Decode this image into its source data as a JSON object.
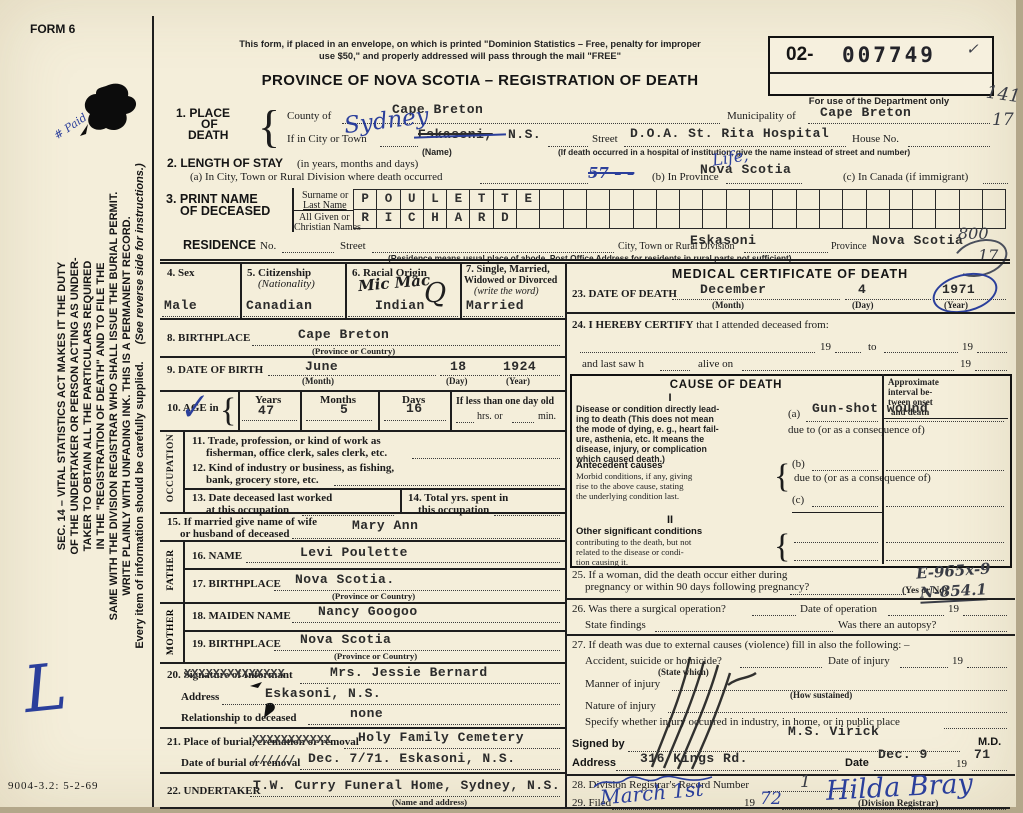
{
  "accent_ink": "#2b3f9b",
  "paper_color": "#f4eeda",
  "hdr": {
    "form6": "FORM 6",
    "n1": "This form, if placed in an envelope, on which is printed \"Dominion Statistics – Free, penalty for improper",
    "n2": "use $50,\" and properly addressed will pass through the mail \"FREE\"",
    "title": "PROVINCE OF NOVA SCOTIA – REGISTRATION OF DEATH",
    "prefix": "02-",
    "regno": "007749",
    "check": "✓",
    "dept": "For use of the Department only",
    "m141": "141",
    "m17": "17",
    "paid": "# Paid",
    "scrL": "L",
    "code": "9004-3.2: 5-2-69"
  },
  "side": {
    "l1": "SEC. 14 – VITAL STATISTICS ACT MAKES IT THE DUTY",
    "l2": "OF THE UNDERTAKER OR PERSON ACTING AS UNDER-",
    "l3": "TAKER TO OBTAIN ALL THE PARTICULARS REQUIRED",
    "l4": "IN THE \"REGISTRATION OF DEATH\" AND TO FILE THE",
    "l5": "SAME WITH THE DIVISION REGISTRAR WHO SHALL ISSUE THE BURIAL PERMIT.",
    "l6": "WRITE PLAINLY WITH UNFADING INK. THIS IS A PERMANENT RECORD.",
    "supplied": "Every item of information should be carefully supplied.",
    "reverse": "(See reverse side for instructions.)"
  },
  "s1": {
    "h1": "1. PLACE",
    "h2": "OF",
    "h3": "DEATH",
    "brace": "{",
    "county": "County of",
    "countyV": "Cape Breton",
    "mun": "Municipality of",
    "munV": "Cape Breton",
    "city": "If in City or Town",
    "cityStruck": "Eskasoni,",
    "ns": "N.S.",
    "sydney": "Sydney",
    "name": "(Name)",
    "street": "Street",
    "streetV": "D.O.A. St. Rita Hospital",
    "house": "House No.",
    "hosp": "(If death occurred in a hospital of institution, give the name instead of street and number)"
  },
  "s2": {
    "h": "2. LENGTH OF STAY",
    "h2": "(in years, months and days)",
    "a": "(a) In City, Town or Rural Division where death occurred",
    "aV": "57 – –",
    "b": "(b) In Province",
    "bV": "Nova Scotia",
    "life": "Life,",
    "c": "(c) In Canada (if immigrant)"
  },
  "s3": {
    "h1": "3. PRINT NAME",
    "h2": "OF DECEASED",
    "sur1": "Surname or",
    "sur2": "Last Name",
    "giv1": "All Given or",
    "giv2": "Christian Names",
    "surname": "POULETTE",
    "given": "RICHARD"
  },
  "res": {
    "h": "RESIDENCE",
    "no": "No.",
    "street": "Street",
    "ctrd": "City, Town or Rural Division",
    "ctrdV": "Eskasoni",
    "prov": "Province",
    "provV": "Nova Scotia",
    "m800": "800",
    "m17": "17",
    "note": "(Residence means usual place of abode. Post Office Address for residents in rural parts not sufficient)"
  },
  "L": {
    "s4": "4. Sex",
    "s4V": "Male",
    "s5a": "5. Citizenship",
    "s5b": "(Nationality)",
    "s5V": "Canadian",
    "s6": "6. Racial Origin",
    "s6V": "Indian",
    "micmac": "Mic Mac",
    "q": "Q",
    "s7a": "7. Single, Married,",
    "s7b": "Widowed or Divorced",
    "s7c": "(write the word)",
    "s7V": "Married",
    "s8": "8. BIRTHPLACE",
    "s8V": "Cape Breton",
    "pc": "(Province or Country)",
    "s9": "9. DATE OF BIRTH",
    "s9m": "June",
    "s9d": "18",
    "s9y": "1924",
    "month": "(Month)",
    "day": "(Day)",
    "year": "(Year)",
    "s10": "10. AGE in",
    "brace": "{",
    "chk": "✓",
    "yrs": "Years",
    "yrsV": "47",
    "mos": "Months",
    "mosV": "5",
    "dys": "Days",
    "dysV": "16",
    "lt1": "If less than one day old",
    "hrs": "hrs. or",
    "min": "min.",
    "occ": "OCCUPATION",
    "s11a": "11. Trade, profession, or kind of work as",
    "s11b": "fisherman, office clerk, sales clerk, etc.",
    "s12a": "12. Kind of industry or business, as fishing,",
    "s12b": "bank, grocery store, etc.",
    "s13a": "13. Date deceased last worked",
    "s13b": "at this occupation",
    "s14a": "14. Total yrs. spent in",
    "s14b": "this occupation",
    "s15a": "15. If married give name of wife",
    "s15b": "or husband of deceased",
    "s15V": "Mary Ann",
    "father": "FATHER",
    "mother": "MOTHER",
    "s16": "16. NAME",
    "s16V": "Levi Poulette",
    "s17": "17. BIRTHPLACE",
    "s17V": "Nova Scotia.",
    "s18": "18. MAIDEN NAME",
    "s18V": "Nancy Googoo",
    "s19": "19. BIRTHPLACE",
    "s19V": "Nova Scotia",
    "s20": "20. Signature of Informant",
    "s20x": "XXXXXXXXXXXXXX",
    "s20V": "Mrs. Jessie Bernard",
    "addr": "Address",
    "addrV": "Eskasoni, N.S.",
    "rel": "Relationship to deceased",
    "relV": "none",
    "s21": "21. Place of burial, cremation or removal",
    "s21x": "XXXXXXXXXXX",
    "s21V": "Holy Family Cemetery",
    "s21b": "Date of burial or removal",
    "s21bx": "//////",
    "s21bV": "Dec. 7/71. Eskasoni, N.S.",
    "s22": "22. UNDERTAKER",
    "s22V": "T.W. Curry Funeral Home, Sydney, N.S.",
    "s22n": "(Name and address)"
  },
  "M": {
    "h": "MEDICAL CERTIFICATE OF DEATH",
    "s23": "23. DATE OF DEATH",
    "s23m": "December",
    "s23d": "4",
    "s23y": "1971",
    "month": "(Month)",
    "day": "(Day)",
    "year": "(Year)",
    "s24a": "24. I HEREBY CERTIFY",
    "s24b": "that I attended deceased from:",
    "y19": "19",
    "to": "to",
    "saw": "and last saw h",
    "alive": "alive on",
    "cod": "CAUSE OF DEATH",
    "i": "I",
    "ii": "II",
    "apx1": "Approximate",
    "apx2": "interval be-",
    "apx3": "tween onset",
    "apx4": "and death",
    "d1": "Disease or condition directly lead-",
    "d2": "ing to death (This does not mean",
    "d3": "the mode of dying, e. g., heart fail-",
    "d4": "ure, asthenia, etc. It means the",
    "d5": "disease, injury, or complication",
    "d6": "which caused death.)",
    "a": "(a)",
    "aV": "Gun-shot wound",
    "due": "due to (or as a consequence of)",
    "brace": "{",
    "ant1": "Antecedent causes",
    "ant2": "Morbid conditions, if any, giving",
    "ant3": "rise to the above cause, stating",
    "ant4": "the underlying condition last.",
    "b": "(b)",
    "c": "(c)",
    "o1": "Other significant conditions",
    "o2": "contributing to the death, but not",
    "o3": "related to the disease or condi-",
    "o4": "tion causing it.",
    "s25a": "25. If a woman, did the death occur either during",
    "s25b": "pregnancy or within 90 days following pregnancy?",
    "yn": "(Yes or No)",
    "e965": "E-965x-9",
    "n854": "N-854.1",
    "s26": "26. Was there a surgical operation?",
    "dop": "Date of operation",
    "sf": "State findings",
    "aut": "Was there an autopsy?",
    "s27": "27. If death was due to external causes (violence) fill in also the following: –",
    "ash": "Accident, suicide or homicide?",
    "doi": "Date of injury",
    "sw": "(State which)",
    "man": "Manner of injury",
    "hs": "(How sustained)",
    "nat": "Nature of injury",
    "spec": "Specify whether injury occurred in industry, in home, or in public place",
    "signed": "Signed by",
    "signedV": "M.S. Virick",
    "md": "M.D.",
    "addr": "Address",
    "addrV": "316 Kings Rd.",
    "date": "Date",
    "dateV": "Dec. 9",
    "yv": "71",
    "s28": "28. Division Registrar's Record Number",
    "s28V": "1",
    "s29": "29. Filed",
    "filedV": "March 1st",
    "fy": "72",
    "sig": "Hilda Bray",
    "dr": "(Division Registrar)"
  }
}
